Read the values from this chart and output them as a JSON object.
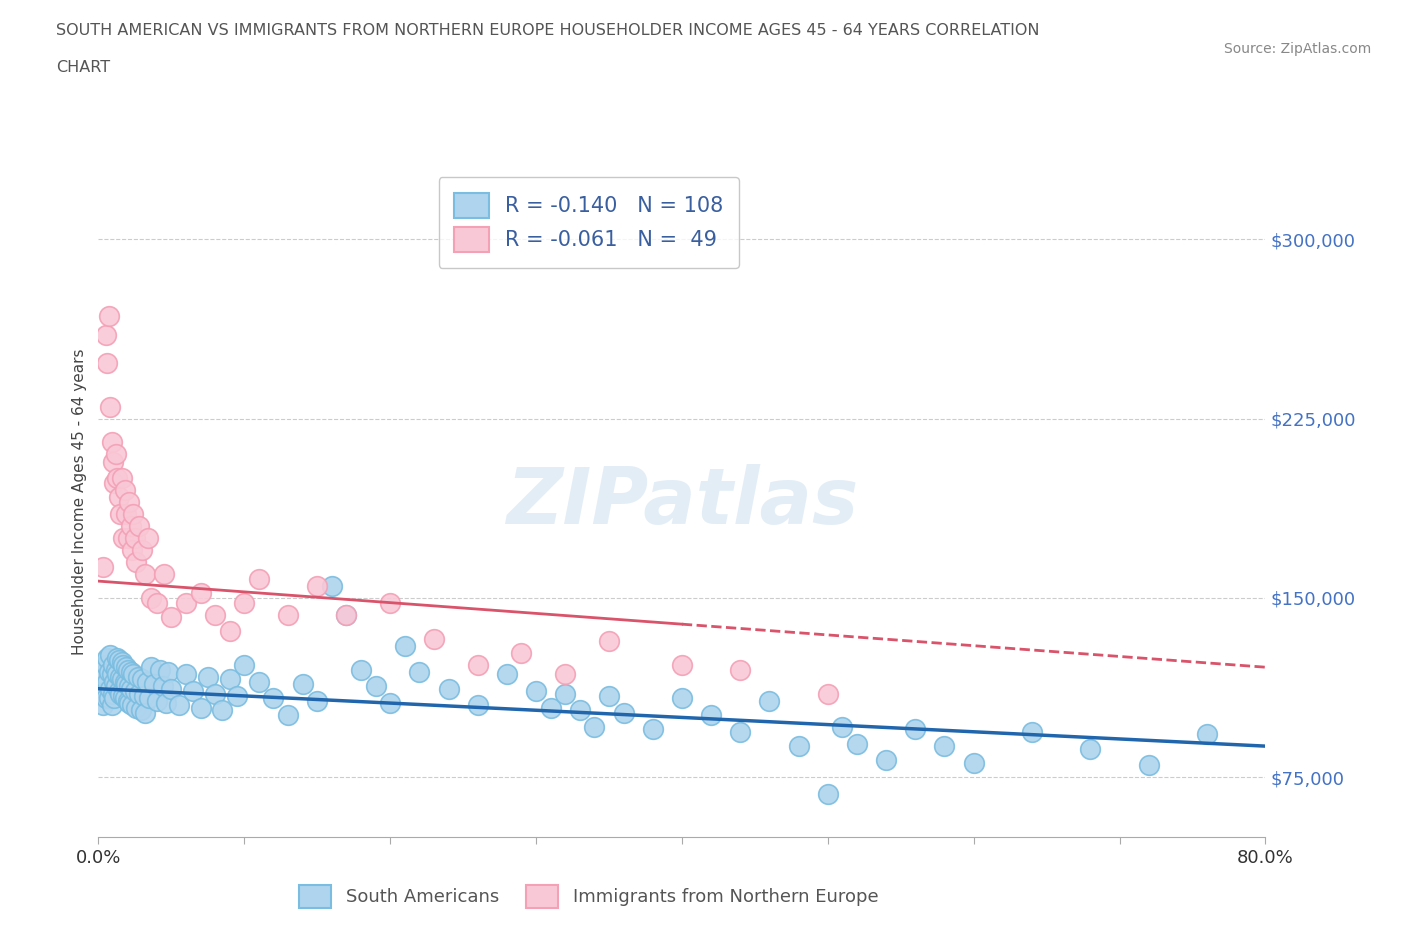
{
  "title_line1": "SOUTH AMERICAN VS IMMIGRANTS FROM NORTHERN EUROPE HOUSEHOLDER INCOME AGES 45 - 64 YEARS CORRELATION",
  "title_line2": "CHART",
  "source": "Source: ZipAtlas.com",
  "ylabel": "Householder Income Ages 45 - 64 years",
  "xlim": [
    0.0,
    0.8
  ],
  "ylim": [
    50000,
    330000
  ],
  "yticks": [
    75000,
    150000,
    225000,
    300000
  ],
  "xticks": [
    0.0,
    0.1,
    0.2,
    0.3,
    0.4,
    0.5,
    0.6,
    0.7,
    0.8
  ],
  "blue_color": "#7abde0",
  "blue_fill": "#aed4ee",
  "pink_color": "#f4a0b5",
  "pink_fill": "#f9c8d6",
  "blue_line_color": "#2166ac",
  "pink_line_color": "#d9536a",
  "R_blue": -0.14,
  "N_blue": 108,
  "R_pink": -0.061,
  "N_pink": 49,
  "blue_intercept": 112000,
  "blue_slope": -30000,
  "pink_intercept": 157000,
  "pink_slope": -45000,
  "watermark": "ZIPatlas",
  "background_color": "#ffffff",
  "grid_color": "#cccccc",
  "legend_label_blue": "South Americans",
  "legend_label_pink": "Immigrants from Northern Europe",
  "blue_scatter_x": [
    0.002,
    0.003,
    0.004,
    0.005,
    0.005,
    0.006,
    0.006,
    0.007,
    0.007,
    0.008,
    0.008,
    0.009,
    0.009,
    0.01,
    0.01,
    0.011,
    0.011,
    0.012,
    0.012,
    0.013,
    0.013,
    0.014,
    0.014,
    0.015,
    0.015,
    0.016,
    0.016,
    0.017,
    0.017,
    0.018,
    0.018,
    0.019,
    0.019,
    0.02,
    0.02,
    0.021,
    0.021,
    0.022,
    0.022,
    0.023,
    0.024,
    0.025,
    0.026,
    0.027,
    0.028,
    0.029,
    0.03,
    0.031,
    0.032,
    0.033,
    0.035,
    0.036,
    0.038,
    0.04,
    0.042,
    0.044,
    0.046,
    0.048,
    0.05,
    0.055,
    0.06,
    0.065,
    0.07,
    0.075,
    0.08,
    0.085,
    0.09,
    0.095,
    0.1,
    0.11,
    0.12,
    0.13,
    0.14,
    0.15,
    0.16,
    0.17,
    0.18,
    0.19,
    0.2,
    0.21,
    0.22,
    0.24,
    0.26,
    0.28,
    0.3,
    0.31,
    0.32,
    0.33,
    0.34,
    0.35,
    0.36,
    0.38,
    0.4,
    0.42,
    0.44,
    0.46,
    0.48,
    0.5,
    0.51,
    0.52,
    0.54,
    0.56,
    0.58,
    0.6,
    0.64,
    0.68,
    0.72,
    0.76
  ],
  "blue_scatter_y": [
    110000,
    105000,
    118000,
    122000,
    108000,
    115000,
    125000,
    119000,
    108000,
    112000,
    126000,
    105000,
    118000,
    110000,
    122000,
    115000,
    108000,
    120000,
    113000,
    125000,
    118000,
    111000,
    124000,
    117000,
    110000,
    123000,
    116000,
    109000,
    122000,
    115000,
    108000,
    121000,
    114000,
    107000,
    120000,
    113000,
    106000,
    119000,
    112000,
    105000,
    118000,
    111000,
    104000,
    117000,
    110000,
    103000,
    116000,
    109000,
    102000,
    115000,
    108000,
    121000,
    114000,
    107000,
    120000,
    113000,
    106000,
    119000,
    112000,
    105000,
    118000,
    111000,
    104000,
    117000,
    110000,
    103000,
    116000,
    109000,
    122000,
    115000,
    108000,
    101000,
    114000,
    107000,
    155000,
    143000,
    120000,
    113000,
    106000,
    130000,
    119000,
    112000,
    105000,
    118000,
    111000,
    104000,
    110000,
    103000,
    96000,
    109000,
    102000,
    95000,
    108000,
    101000,
    94000,
    107000,
    88000,
    68000,
    96000,
    89000,
    82000,
    95000,
    88000,
    81000,
    94000,
    87000,
    80000,
    93000
  ],
  "pink_scatter_x": [
    0.003,
    0.005,
    0.006,
    0.007,
    0.008,
    0.009,
    0.01,
    0.011,
    0.012,
    0.013,
    0.014,
    0.015,
    0.016,
    0.017,
    0.018,
    0.019,
    0.02,
    0.021,
    0.022,
    0.023,
    0.024,
    0.025,
    0.026,
    0.028,
    0.03,
    0.032,
    0.034,
    0.036,
    0.04,
    0.045,
    0.05,
    0.06,
    0.07,
    0.08,
    0.09,
    0.1,
    0.11,
    0.13,
    0.15,
    0.17,
    0.2,
    0.23,
    0.26,
    0.29,
    0.32,
    0.35,
    0.4,
    0.44,
    0.5
  ],
  "pink_scatter_y": [
    163000,
    260000,
    248000,
    268000,
    230000,
    215000,
    207000,
    198000,
    210000,
    200000,
    192000,
    185000,
    200000,
    175000,
    195000,
    185000,
    175000,
    190000,
    180000,
    170000,
    185000,
    175000,
    165000,
    180000,
    170000,
    160000,
    175000,
    150000,
    148000,
    160000,
    142000,
    148000,
    152000,
    143000,
    136000,
    148000,
    158000,
    143000,
    155000,
    143000,
    148000,
    133000,
    122000,
    127000,
    118000,
    132000,
    122000,
    120000,
    110000
  ]
}
